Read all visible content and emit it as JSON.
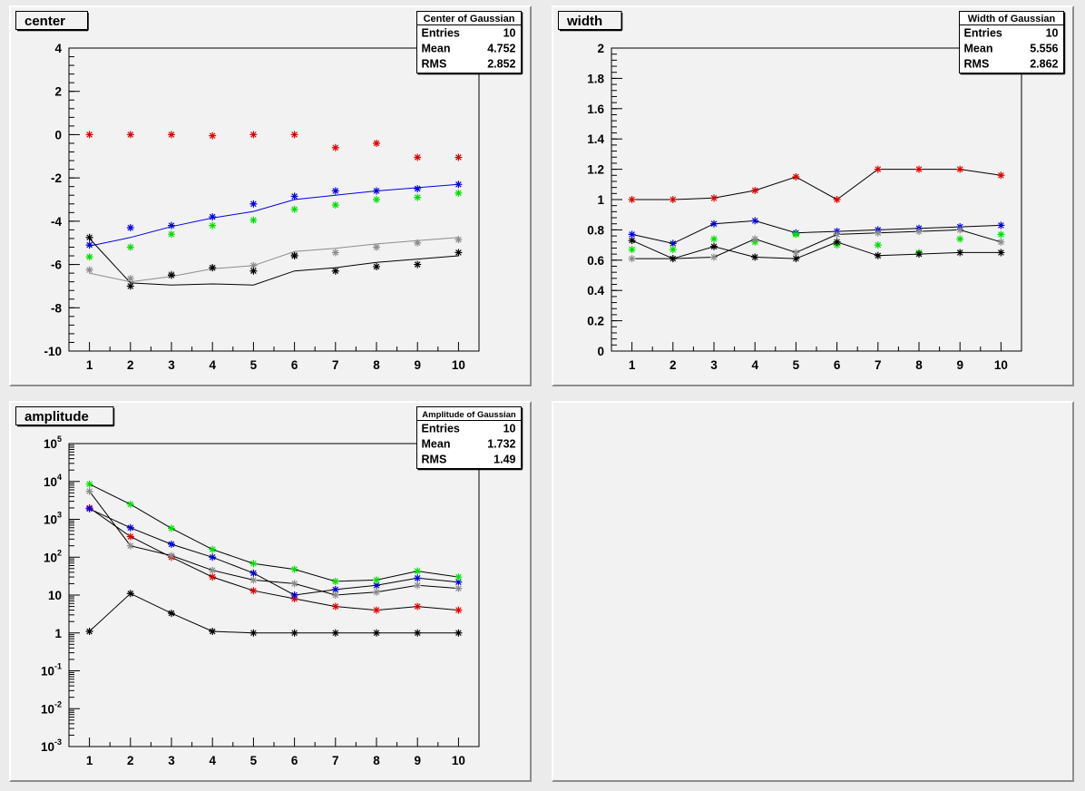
{
  "colors": {
    "red": "#e00000",
    "blue": "#0000e0",
    "green": "#00e000",
    "gray": "#8c8c8c",
    "black": "#000000",
    "pad_bg": "#f2f2f2"
  },
  "chart_data": [
    {
      "type": "line",
      "title": "center",
      "stats": {
        "title": "Center of Gaussian",
        "rows": [
          {
            "label": "Entries",
            "value": "10"
          },
          {
            "label": "Mean",
            "value": "4.752"
          },
          {
            "label": "RMS",
            "value": "2.852"
          }
        ]
      },
      "x": [
        1,
        2,
        3,
        4,
        5,
        6,
        7,
        8,
        9,
        10
      ],
      "xticks": [
        "1",
        "2",
        "3",
        "4",
        "5",
        "6",
        "7",
        "8",
        "9",
        "10"
      ],
      "ylim": [
        -10,
        4
      ],
      "yticks": [
        {
          "v": 4,
          "t": "4"
        },
        {
          "v": 2,
          "t": "2"
        },
        {
          "v": 0,
          "t": "0"
        },
        {
          "v": -2,
          "t": "-2"
        },
        {
          "v": -4,
          "t": "-4"
        },
        {
          "v": -6,
          "t": "-6"
        },
        {
          "v": -8,
          "t": "-8"
        },
        {
          "v": -10,
          "t": "-10"
        }
      ],
      "series": [
        {
          "color": "red",
          "values": [
            0,
            0,
            0,
            -0.05,
            0,
            0,
            -0.6,
            -0.4,
            -1.05,
            -1.05
          ]
        },
        {
          "color": "blue",
          "values": [
            -5.1,
            -4.3,
            -4.2,
            -3.8,
            -3.2,
            -2.85,
            -2.6,
            -2.6,
            -2.5,
            -2.3
          ]
        },
        {
          "color": "green",
          "values": [
            -5.65,
            -5.2,
            -4.6,
            -4.2,
            -3.95,
            -3.45,
            -3.25,
            -3.0,
            -2.9,
            -2.7
          ]
        },
        {
          "color": "gray",
          "values": [
            -6.25,
            -6.65,
            -6.45,
            -6.15,
            -6.05,
            -5.55,
            -5.45,
            -5.2,
            -5.0,
            -4.85
          ]
        },
        {
          "color": "black",
          "values": [
            -4.75,
            -7.0,
            -6.5,
            -6.15,
            -6.3,
            -5.6,
            -6.3,
            -6.1,
            -6.0,
            -5.45
          ]
        }
      ],
      "fits": [
        {
          "color": "blue",
          "values": [
            -5.15,
            -4.75,
            -4.25,
            -3.85,
            -3.55,
            -3.0,
            -2.8,
            -2.6,
            -2.45,
            -2.3
          ]
        },
        {
          "color": "gray",
          "values": [
            -6.4,
            -6.8,
            -6.55,
            -6.2,
            -6.05,
            -5.4,
            -5.25,
            -5.05,
            -4.9,
            -4.75
          ]
        },
        {
          "color": "black",
          "values": [
            -4.8,
            -6.85,
            -6.95,
            -6.9,
            -6.95,
            -6.3,
            -6.15,
            -5.9,
            -5.75,
            -5.6
          ]
        }
      ]
    },
    {
      "type": "line",
      "title": "width",
      "stats": {
        "title": "Width of Gaussian",
        "rows": [
          {
            "label": "Entries",
            "value": "10"
          },
          {
            "label": "Mean",
            "value": "5.556"
          },
          {
            "label": "RMS",
            "value": "2.862"
          }
        ]
      },
      "x": [
        1,
        2,
        3,
        4,
        5,
        6,
        7,
        8,
        9,
        10
      ],
      "xticks": [
        "1",
        "2",
        "3",
        "4",
        "5",
        "6",
        "7",
        "8",
        "9",
        "10"
      ],
      "ylim": [
        0,
        2
      ],
      "yticks": [
        {
          "v": 2,
          "t": "2"
        },
        {
          "v": 1.8,
          "t": "1.8"
        },
        {
          "v": 1.6,
          "t": "1.6"
        },
        {
          "v": 1.4,
          "t": "1.4"
        },
        {
          "v": 1.2,
          "t": "1.2"
        },
        {
          "v": 1,
          "t": "1"
        },
        {
          "v": 0.8,
          "t": "0.8"
        },
        {
          "v": 0.6,
          "t": "0.6"
        },
        {
          "v": 0.4,
          "t": "0.4"
        },
        {
          "v": 0.2,
          "t": "0.2"
        },
        {
          "v": 0,
          "t": "0"
        }
      ],
      "series": [
        {
          "color": "red",
          "values": [
            1.0,
            1.0,
            1.01,
            1.06,
            1.15,
            1.0,
            1.2,
            1.2,
            1.2,
            1.16
          ]
        },
        {
          "color": "blue",
          "values": [
            0.77,
            0.71,
            0.84,
            0.86,
            0.78,
            0.79,
            0.8,
            0.81,
            0.82,
            0.83
          ]
        },
        {
          "color": "green",
          "values": [
            0.67,
            0.67,
            0.74,
            0.72,
            0.77,
            0.7,
            0.7,
            0.65,
            0.74,
            0.77
          ]
        },
        {
          "color": "gray",
          "values": [
            0.61,
            0.61,
            0.62,
            0.74,
            0.65,
            0.77,
            0.78,
            0.79,
            0.8,
            0.72
          ]
        },
        {
          "color": "black",
          "values": [
            0.73,
            0.61,
            0.69,
            0.62,
            0.61,
            0.72,
            0.63,
            0.64,
            0.65,
            0.65
          ]
        }
      ],
      "fits": [
        {
          "color": "black",
          "values": [
            1.0,
            1.0,
            1.01,
            1.06,
            1.15,
            1.0,
            1.2,
            1.2,
            1.2,
            1.16
          ]
        },
        {
          "color": "black",
          "values": [
            0.77,
            0.71,
            0.84,
            0.86,
            0.78,
            0.79,
            0.8,
            0.81,
            0.82,
            0.83
          ]
        },
        {
          "color": "black",
          "values": [
            0.61,
            0.61,
            0.62,
            0.74,
            0.65,
            0.77,
            0.78,
            0.79,
            0.8,
            0.72
          ]
        },
        {
          "color": "black",
          "values": [
            0.73,
            0.61,
            0.69,
            0.62,
            0.61,
            0.72,
            0.63,
            0.64,
            0.65,
            0.65
          ]
        }
      ]
    },
    {
      "type": "line",
      "title": "amplitude",
      "log_y": true,
      "stats": {
        "title": "Amplitude of Gaussian",
        "rows": [
          {
            "label": "Entries",
            "value": "10"
          },
          {
            "label": "Mean",
            "value": "1.732"
          },
          {
            "label": "RMS",
            "value": "1.49"
          }
        ]
      },
      "x": [
        1,
        2,
        3,
        4,
        5,
        6,
        7,
        8,
        9,
        10
      ],
      "xticks": [
        "1",
        "2",
        "3",
        "4",
        "5",
        "6",
        "7",
        "8",
        "9",
        "10"
      ],
      "ylim": [
        0.001,
        100000
      ],
      "yticks": [
        {
          "v": 100000,
          "b": "10",
          "e": "5"
        },
        {
          "v": 10000,
          "b": "10",
          "e": "4"
        },
        {
          "v": 1000,
          "b": "10",
          "e": "3"
        },
        {
          "v": 100,
          "b": "10",
          "e": "2"
        },
        {
          "v": 10,
          "b": "10",
          "e": ""
        },
        {
          "v": 1,
          "b": "1",
          "e": ""
        },
        {
          "v": 0.1,
          "b": "10",
          "e": "-1"
        },
        {
          "v": 0.01,
          "b": "10",
          "e": "-2"
        },
        {
          "v": 0.001,
          "b": "10",
          "e": "-3"
        }
      ],
      "series": [
        {
          "color": "red",
          "values": [
            2000,
            350,
            100,
            30,
            13,
            8,
            5,
            4,
            5,
            4
          ]
        },
        {
          "color": "blue",
          "values": [
            1900,
            600,
            220,
            100,
            38,
            10,
            14,
            18,
            28,
            22
          ]
        },
        {
          "color": "green",
          "values": [
            8500,
            2500,
            580,
            160,
            68,
            48,
            23,
            25,
            43,
            30
          ]
        },
        {
          "color": "gray",
          "values": [
            5500,
            200,
            110,
            45,
            25,
            20,
            10,
            12,
            18,
            15
          ]
        },
        {
          "color": "black",
          "values": [
            1.1,
            11,
            3.3,
            1.1,
            1,
            1,
            1,
            1,
            1,
            1
          ]
        }
      ],
      "fits": [
        {
          "color": "black",
          "values": [
            2000,
            350,
            100,
            30,
            13,
            8,
            5,
            4,
            5,
            4
          ]
        },
        {
          "color": "black",
          "values": [
            1900,
            600,
            220,
            100,
            38,
            10,
            14,
            18,
            28,
            22
          ]
        },
        {
          "color": "black",
          "values": [
            8500,
            2500,
            580,
            160,
            68,
            48,
            23,
            25,
            43,
            30
          ]
        },
        {
          "color": "black",
          "values": [
            5500,
            200,
            110,
            45,
            25,
            20,
            10,
            12,
            18,
            15
          ]
        },
        {
          "color": "black",
          "values": [
            1.1,
            11,
            3.3,
            1.1,
            1,
            1,
            1,
            1,
            1,
            1
          ]
        }
      ]
    }
  ]
}
